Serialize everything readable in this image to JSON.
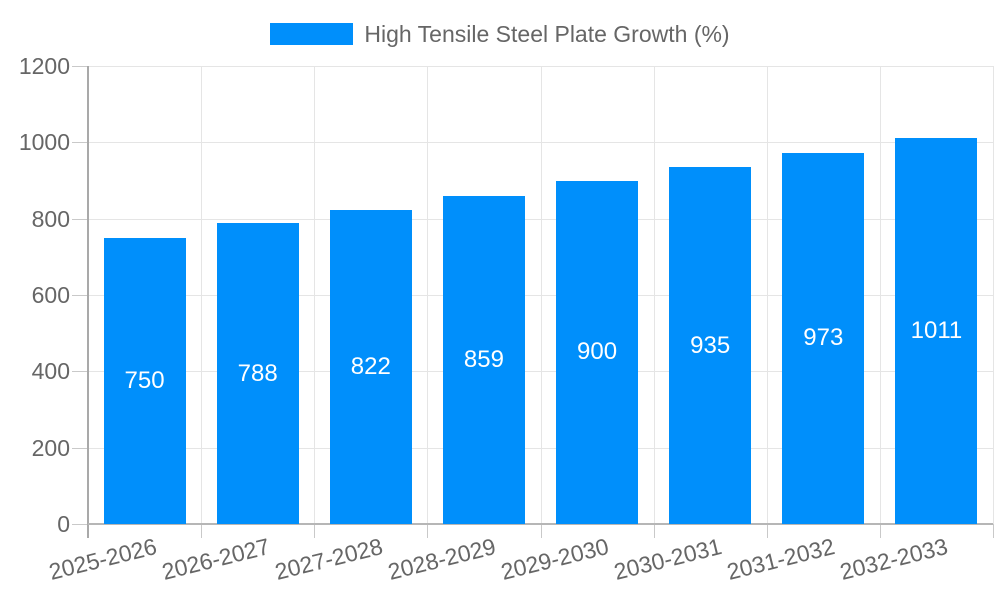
{
  "legend": {
    "label": "High Tensile Steel Plate Growth (%)",
    "swatch_color": "#008FFB"
  },
  "chart_data": {
    "type": "bar",
    "title": "High Tensile Steel Plate Growth (%)",
    "categories": [
      "2025-2026",
      "2026-2027",
      "2027-2028",
      "2028-2029",
      "2029-2030",
      "2030-2031",
      "2031-2032",
      "2032-2033"
    ],
    "values": [
      750,
      788,
      822,
      859,
      900,
      935,
      973,
      1011
    ],
    "xlabel": "",
    "ylabel": "",
    "ylim": [
      0,
      1200
    ],
    "yticks": [
      0,
      200,
      400,
      600,
      800,
      1000,
      1200
    ],
    "grid": true,
    "legend_position": "top",
    "bar_color": "#008FFB",
    "value_label_color": "#ffffff",
    "axis_text_color": "#666666"
  }
}
